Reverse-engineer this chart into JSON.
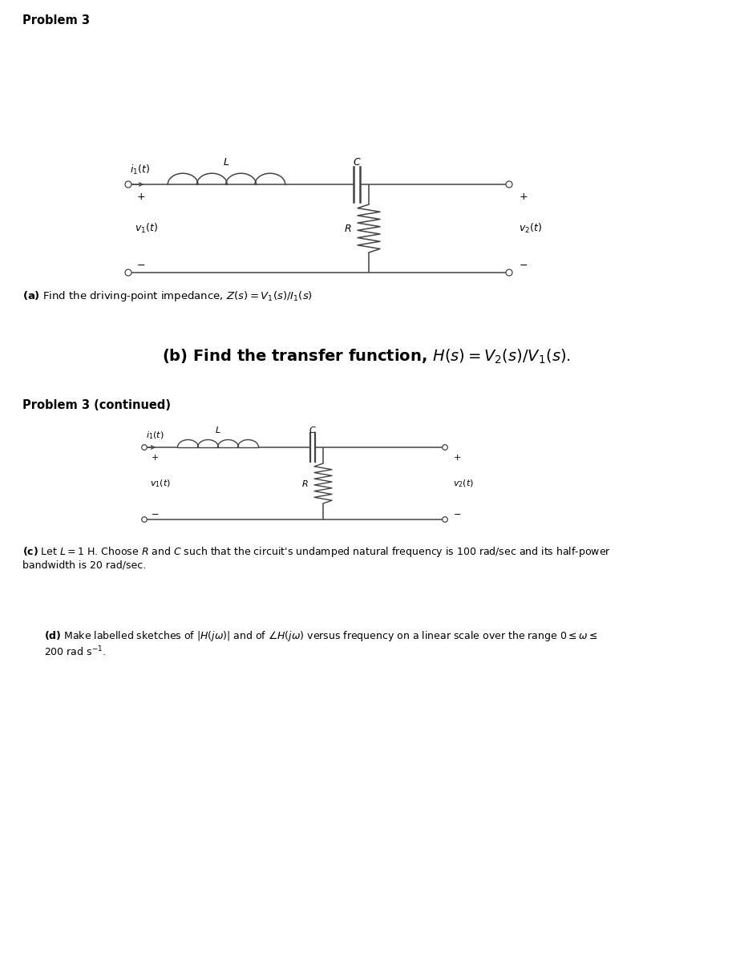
{
  "bg_color": "#ffffff",
  "line_color": "#444444",
  "title1": "Problem 3",
  "title2": "Problem 3 (continued)",
  "part_a_label": "(a)",
  "part_a_rest": " Find the driving-point impedance, ",
  "part_b_label": "(b)",
  "part_c_label": "(c)",
  "part_d_label": "(d)",
  "fig_width": 9.13,
  "fig_height": 12.0,
  "dpi": 100
}
